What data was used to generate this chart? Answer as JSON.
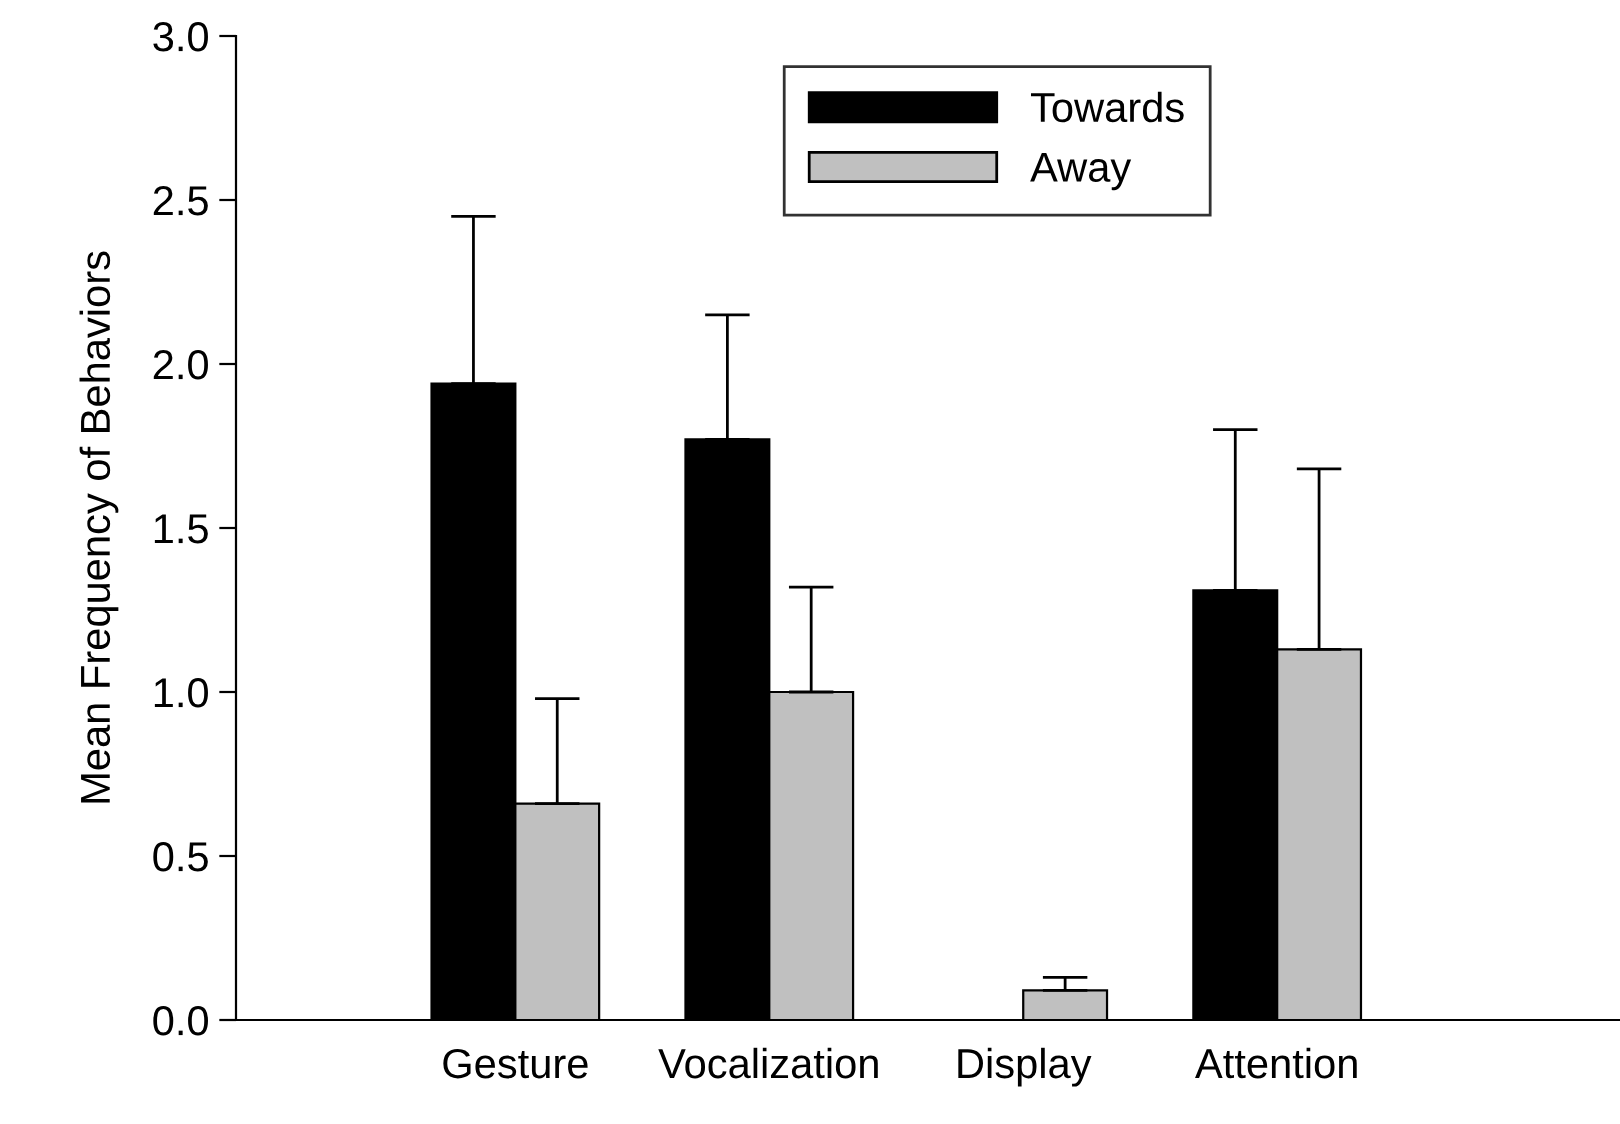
{
  "chart_data": {
    "type": "bar",
    "ylabel": "Mean Frequency of Behaviors",
    "categories": [
      "Gesture",
      "Vocalization",
      "Display",
      "Attention"
    ],
    "series": [
      {
        "name": "Towards",
        "color": "#000000",
        "values": [
          1.94,
          1.77,
          0,
          1.31
        ],
        "errors": [
          [
            1.94,
            2.45
          ],
          [
            1.77,
            2.15
          ],
          null,
          [
            1.31,
            1.8
          ]
        ]
      },
      {
        "name": "Away",
        "color": "#c0c0c0",
        "values": [
          0.66,
          1.0,
          0.09,
          1.13
        ],
        "errors": [
          [
            0.66,
            0.98
          ],
          [
            1.0,
            1.32
          ],
          [
            0.09,
            0.13
          ],
          [
            1.13,
            1.68
          ]
        ]
      }
    ],
    "ylim": [
      0,
      3
    ],
    "yticks": [
      {
        "value": 0,
        "label": "0.0"
      },
      {
        "value": 0.5,
        "label": "0.5"
      },
      {
        "value": 1,
        "label": "1.0"
      },
      {
        "value": 1.5,
        "label": "1.5"
      },
      {
        "value": 2,
        "label": "2.0"
      },
      {
        "value": 2.5,
        "label": "2.5"
      },
      {
        "value": 3,
        "label": "3.0"
      }
    ],
    "grid": false,
    "legend": "top"
  }
}
